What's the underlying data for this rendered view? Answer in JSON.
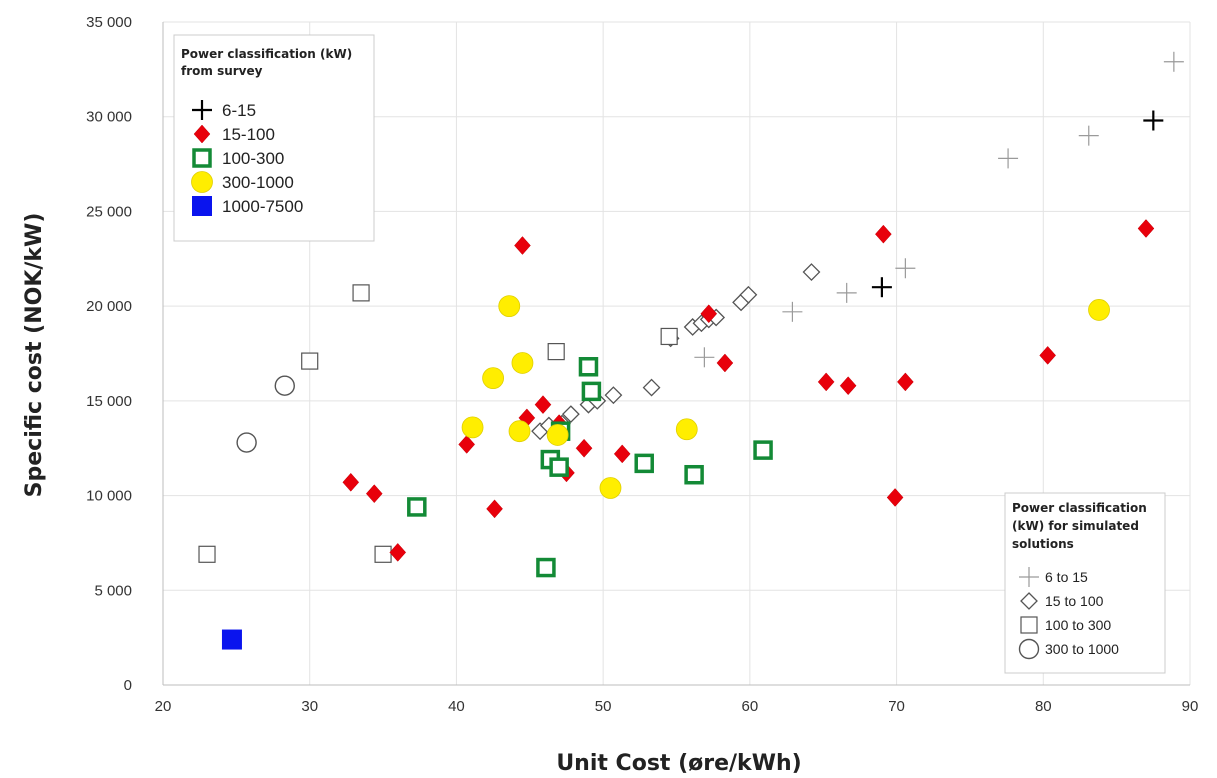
{
  "chart_data": {
    "type": "scatter",
    "xlabel": "Unit Cost (øre/kWh)",
    "ylabel": "Specific cost (NOK/kW)",
    "xlim": [
      20,
      90
    ],
    "ylim": [
      0,
      35000
    ],
    "x_ticks": [
      "20",
      "30",
      "40",
      "50",
      "60",
      "70",
      "80",
      "90"
    ],
    "y_ticks": [
      "0",
      "5 000",
      "10 000",
      "15 000",
      "20 000",
      "25 000",
      "30 000",
      "35 000"
    ],
    "grid": true,
    "legends": [
      {
        "title_lines": [
          "Power classification (kW)",
          "from survey"
        ],
        "placement": "top-left",
        "entries": [
          "6-15",
          "15-100",
          "100-300",
          "300-1000",
          "1000-7500"
        ]
      },
      {
        "title_lines": [
          "Power classification",
          "(kW) for simulated",
          "solutions"
        ],
        "placement": "bottom-right",
        "entries": [
          "6 to 15",
          "15 to 100",
          "100 to 300",
          "300 to 1000"
        ]
      }
    ],
    "series": [
      {
        "name": "6-15",
        "group": "survey",
        "marker": "plus",
        "color": "#000000",
        "points": [
          [
            87.5,
            29800
          ],
          [
            69,
            21000
          ]
        ]
      },
      {
        "name": "15-100",
        "group": "survey",
        "marker": "diamond",
        "color": "#e8000b",
        "points": [
          [
            32.8,
            10700
          ],
          [
            34.4,
            10100
          ],
          [
            36,
            7000
          ],
          [
            40.7,
            12700
          ],
          [
            42.6,
            9300
          ],
          [
            44.5,
            23200
          ],
          [
            44.8,
            14100
          ],
          [
            45.9,
            14800
          ],
          [
            47,
            13800
          ],
          [
            47.5,
            11200
          ],
          [
            48.7,
            12500
          ],
          [
            51.3,
            12200
          ],
          [
            57.2,
            19600
          ],
          [
            58.3,
            17000
          ],
          [
            65.2,
            16000
          ],
          [
            66.7,
            15800
          ],
          [
            69.1,
            23800
          ],
          [
            69.9,
            9900
          ],
          [
            70.6,
            16000
          ],
          [
            80.3,
            17400
          ],
          [
            87,
            24100
          ]
        ]
      },
      {
        "name": "100-300",
        "group": "survey",
        "marker": "square-open",
        "color": "#138a36",
        "points": [
          [
            37.3,
            9400
          ],
          [
            46.1,
            6200
          ],
          [
            46.4,
            11900
          ],
          [
            47,
            11500
          ],
          [
            47.1,
            13400
          ],
          [
            49,
            16800
          ],
          [
            49.2,
            15500
          ],
          [
            52.8,
            11700
          ],
          [
            56.2,
            11100
          ],
          [
            60.9,
            12400
          ]
        ]
      },
      {
        "name": "300-1000",
        "group": "survey",
        "marker": "circle",
        "color": "#ffee00",
        "points": [
          [
            41.1,
            13600
          ],
          [
            42.5,
            16200
          ],
          [
            43.6,
            20000
          ],
          [
            44.3,
            13400
          ],
          [
            44.5,
            17000
          ],
          [
            46.9,
            13200
          ],
          [
            50.5,
            10400
          ],
          [
            55.7,
            13500
          ],
          [
            83.8,
            19800
          ]
        ]
      },
      {
        "name": "1000-7500",
        "group": "survey",
        "marker": "square",
        "color": "#0a14ee",
        "points": [
          [
            24.7,
            2400
          ]
        ]
      },
      {
        "name": "6 to 15",
        "group": "simulated",
        "marker": "plus-thin",
        "color": "#9a9a9a",
        "points": [
          [
            56.9,
            17300
          ],
          [
            62.9,
            19700
          ],
          [
            66.6,
            20700
          ],
          [
            70.6,
            22000
          ],
          [
            77.6,
            27800
          ],
          [
            83.1,
            29000
          ],
          [
            88.9,
            32900
          ]
        ]
      },
      {
        "name": "15 to 100",
        "group": "simulated",
        "marker": "diamond-open",
        "color": "#555555",
        "points": [
          [
            45.7,
            13400
          ],
          [
            46.3,
            13700
          ],
          [
            47.2,
            13800
          ],
          [
            47.8,
            14300
          ],
          [
            49,
            14800
          ],
          [
            49.6,
            15000
          ],
          [
            50.7,
            15300
          ],
          [
            53.3,
            15700
          ],
          [
            54.6,
            18300
          ],
          [
            56.1,
            18900
          ],
          [
            56.7,
            19100
          ],
          [
            57.2,
            19300
          ],
          [
            57.7,
            19400
          ],
          [
            59.4,
            20200
          ],
          [
            59.9,
            20600
          ],
          [
            64.2,
            21800
          ]
        ]
      },
      {
        "name": "100 to 300",
        "group": "simulated",
        "marker": "square-thin",
        "color": "#555555",
        "points": [
          [
            23,
            6900
          ],
          [
            30,
            17100
          ],
          [
            33.5,
            20700
          ],
          [
            35,
            6900
          ],
          [
            54.5,
            18400
          ],
          [
            46.8,
            17600
          ]
        ]
      },
      {
        "name": "300 to 1000",
        "group": "simulated",
        "marker": "circle-open",
        "color": "#555555",
        "points": [
          [
            25.7,
            12800
          ],
          [
            28.3,
            15800
          ]
        ]
      }
    ]
  }
}
